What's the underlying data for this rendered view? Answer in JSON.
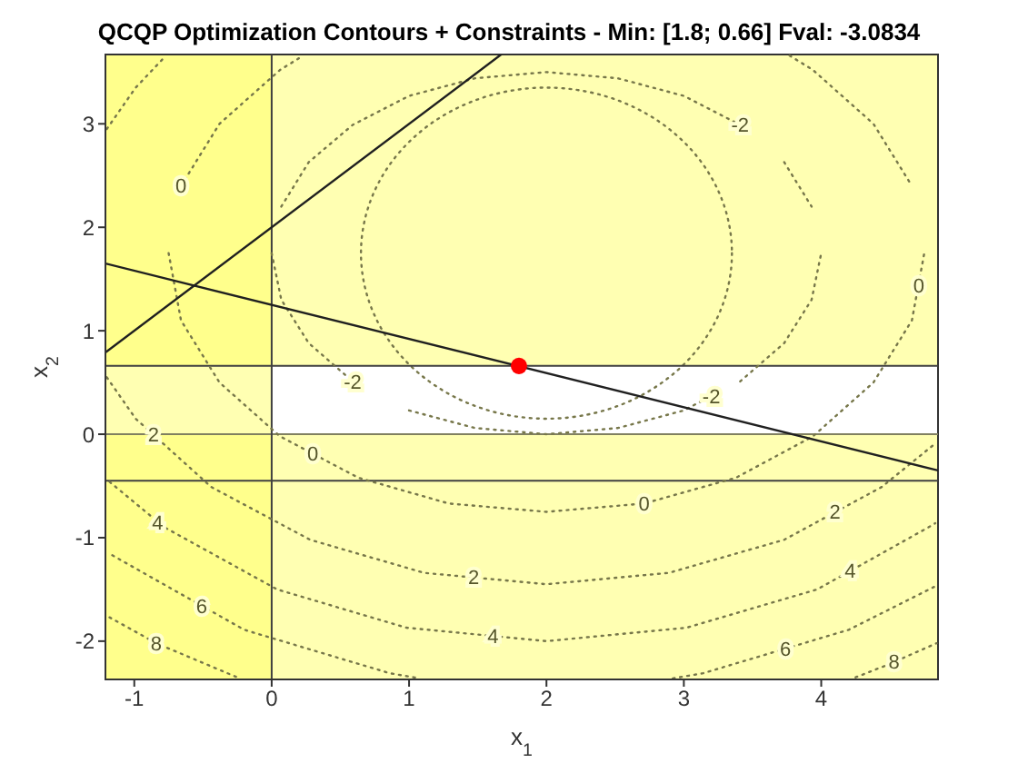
{
  "chart_data": {
    "type": "line",
    "title": "QCQP Optimization Contours + Constraints - Min: [1.8; 0.66] Fval: -3.0834",
    "xlabel": "x$_{1}$",
    "ylabel": "x$_{2}$",
    "xlim": [
      -1.21,
      4.85
    ],
    "ylim": [
      -2.37,
      3.67
    ],
    "xticks": [
      -1,
      0,
      1,
      2,
      3,
      4
    ],
    "yticks": [
      -2,
      -1,
      0,
      1,
      2,
      3
    ],
    "marker": "none",
    "bands": [
      {
        "axis": "y",
        "from": 0.66,
        "to": 3.67,
        "color": "#ffff66"
      },
      {
        "axis": "y",
        "from": -2.37,
        "to": 0,
        "color": "#ffff66"
      },
      {
        "axis": "x",
        "from": -1.21,
        "to": 0,
        "color": "#ffff66"
      }
    ],
    "ref_lines": [
      {
        "axis": "y",
        "value": 0.66,
        "color": "#404040"
      },
      {
        "axis": "y",
        "value": 0,
        "color": "#808060"
      },
      {
        "axis": "y",
        "value": -0.45,
        "color": "#404040"
      },
      {
        "axis": "x",
        "value": 0,
        "color": "#404040"
      }
    ],
    "series": [
      {
        "type": "line",
        "line_style": "dotted",
        "color": "#77774a",
        "x": [
          0.07,
          0.27,
          0.59,
          1,
          1.48,
          2,
          2.52,
          3,
          3.41
        ],
        "values": [
          2.2,
          2.63,
          2.99,
          3.27,
          3.44,
          3.5,
          3.44,
          3.27,
          2.99
        ]
      },
      {
        "type": "line",
        "line_style": "dotted",
        "color": "#77774a",
        "x": [
          3.73,
          3.93
        ],
        "values": [
          2.63,
          2.2
        ]
      },
      {
        "type": "line",
        "line_style": "dotted",
        "color": "#77774a",
        "x": [
          0,
          0.07,
          0.27,
          0.59
        ],
        "values": [
          1.75,
          1.3,
          0.88,
          0.51
        ]
      },
      {
        "type": "line",
        "line_style": "dotted",
        "color": "#77774a",
        "x": [
          1,
          1.48,
          2,
          2.52,
          3,
          3.2
        ],
        "values": [
          0.23,
          0.06,
          0,
          0.06,
          0.23,
          0.37
        ]
      },
      {
        "type": "line",
        "line_style": "dotted",
        "color": "#77774a",
        "x": [
          3.41,
          3.73,
          3.93,
          4
        ],
        "values": [
          0.51,
          0.88,
          1.3,
          1.75
        ]
      },
      {
        "type": "line",
        "line_style": "dotted",
        "color": "#77774a",
        "x": [
          -0.66,
          -0.38,
          0.06,
          0.23
        ],
        "values": [
          2.4,
          3,
          3.52,
          3.66
        ]
      },
      {
        "type": "line",
        "line_style": "dotted",
        "color": "#77774a",
        "x": [
          -0.75,
          -0.66,
          -0.38,
          0.06,
          0.63,
          1.29,
          2,
          2.71,
          3.38,
          3.94,
          4.38,
          4.66,
          4.75
        ],
        "values": [
          1.75,
          1.1,
          0.5,
          -0.02,
          -0.42,
          -0.67,
          -0.75,
          -0.67,
          -0.42,
          -0.02,
          0.5,
          1.1,
          1.75
        ]
      },
      {
        "type": "line",
        "line_style": "dotted",
        "color": "#77774a",
        "x": [
          3.77,
          3.94,
          4.38,
          4.66
        ],
        "values": [
          3.66,
          3.52,
          3,
          2.4
        ]
      },
      {
        "type": "line",
        "line_style": "dotted",
        "color": "#77774a",
        "x": [
          -1.2,
          -0.99,
          -0.79
        ],
        "values": [
          2.95,
          3.35,
          3.63
        ]
      },
      {
        "type": "line",
        "line_style": "dotted",
        "color": "#77774a",
        "x": [
          -1.2,
          -0.99,
          -0.44,
          0.28,
          1.11,
          2,
          2.89,
          3.73,
          4.44,
          4.83
        ],
        "values": [
          0.55,
          0.15,
          -0.51,
          -1.02,
          -1.34,
          -1.45,
          -1.34,
          -1.02,
          -0.51,
          -0.09
        ]
      },
      {
        "type": "line",
        "line_style": "dotted",
        "color": "#77774a",
        "x": [
          -1.18,
          -0.78,
          0.04,
          0.98,
          2,
          3.02,
          3.97,
          4.78,
          4.83
        ],
        "values": [
          -0.46,
          -0.9,
          -1.5,
          -1.87,
          -2,
          -1.87,
          -1.5,
          -0.9,
          -0.86
        ]
      },
      {
        "type": "line",
        "line_style": "dotted",
        "color": "#77774a",
        "x": [
          -1.16,
          -0.2,
          0.86,
          1.08
        ],
        "values": [
          -1.17,
          -1.89,
          -2.31,
          -2.36
        ]
      },
      {
        "type": "line",
        "line_style": "dotted",
        "color": "#77774a",
        "x": [
          2.92,
          3.14,
          4.2,
          4.83
        ],
        "values": [
          -2.36,
          -2.31,
          -1.89,
          -1.47
        ]
      },
      {
        "type": "line",
        "line_style": "dotted",
        "color": "#77774a",
        "x": [
          -1.18,
          -0.84,
          -0.25
        ],
        "values": [
          -1.77,
          -2.02,
          -2.35
        ]
      },
      {
        "type": "line",
        "line_style": "dotted",
        "color": "#77774a",
        "x": [
          4.25,
          4.48,
          4.84
        ],
        "values": [
          -2.35,
          -2.23,
          -2.02
        ]
      },
      {
        "type": "line",
        "line_style": "solid",
        "color": "#202020",
        "x": [
          -1.21,
          1.67
        ],
        "values": [
          0.79,
          3.67
        ]
      },
      {
        "type": "line",
        "line_style": "solid",
        "color": "#202020",
        "x": [
          -1.21,
          4.85
        ],
        "values": [
          1.65,
          -0.35
        ]
      },
      {
        "type": "scatter",
        "marker": "circle",
        "color": "#ff0000",
        "x": [
          1.8
        ],
        "values": [
          0.66
        ]
      }
    ],
    "annotations": [
      {
        "text": "-2",
        "x": 3.41,
        "y": 2.99
      },
      {
        "text": "-2",
        "x": 0.59,
        "y": 0.51
      },
      {
        "text": "-2",
        "x": 3.2,
        "y": 0.37
      },
      {
        "text": "0",
        "x": -0.66,
        "y": 2.4
      },
      {
        "text": "0",
        "x": 4.71,
        "y": 1.44
      },
      {
        "text": "0",
        "x": 0.3,
        "y": -0.19
      },
      {
        "text": "0",
        "x": 2.71,
        "y": -0.67
      },
      {
        "text": "2",
        "x": -0.86,
        "y": 0
      },
      {
        "text": "2",
        "x": 1.47,
        "y": -1.38
      },
      {
        "text": "2",
        "x": 4.1,
        "y": -0.75
      },
      {
        "text": "4",
        "x": -0.83,
        "y": -0.85
      },
      {
        "text": "4",
        "x": 1.61,
        "y": -1.95
      },
      {
        "text": "4",
        "x": 4.21,
        "y": -1.32
      },
      {
        "text": "6",
        "x": -0.51,
        "y": -1.66
      },
      {
        "text": "6",
        "x": 3.74,
        "y": -2.07
      },
      {
        "text": "8",
        "x": -0.84,
        "y": -2.02
      },
      {
        "text": "8",
        "x": 4.53,
        "y": -2.2
      }
    ]
  }
}
